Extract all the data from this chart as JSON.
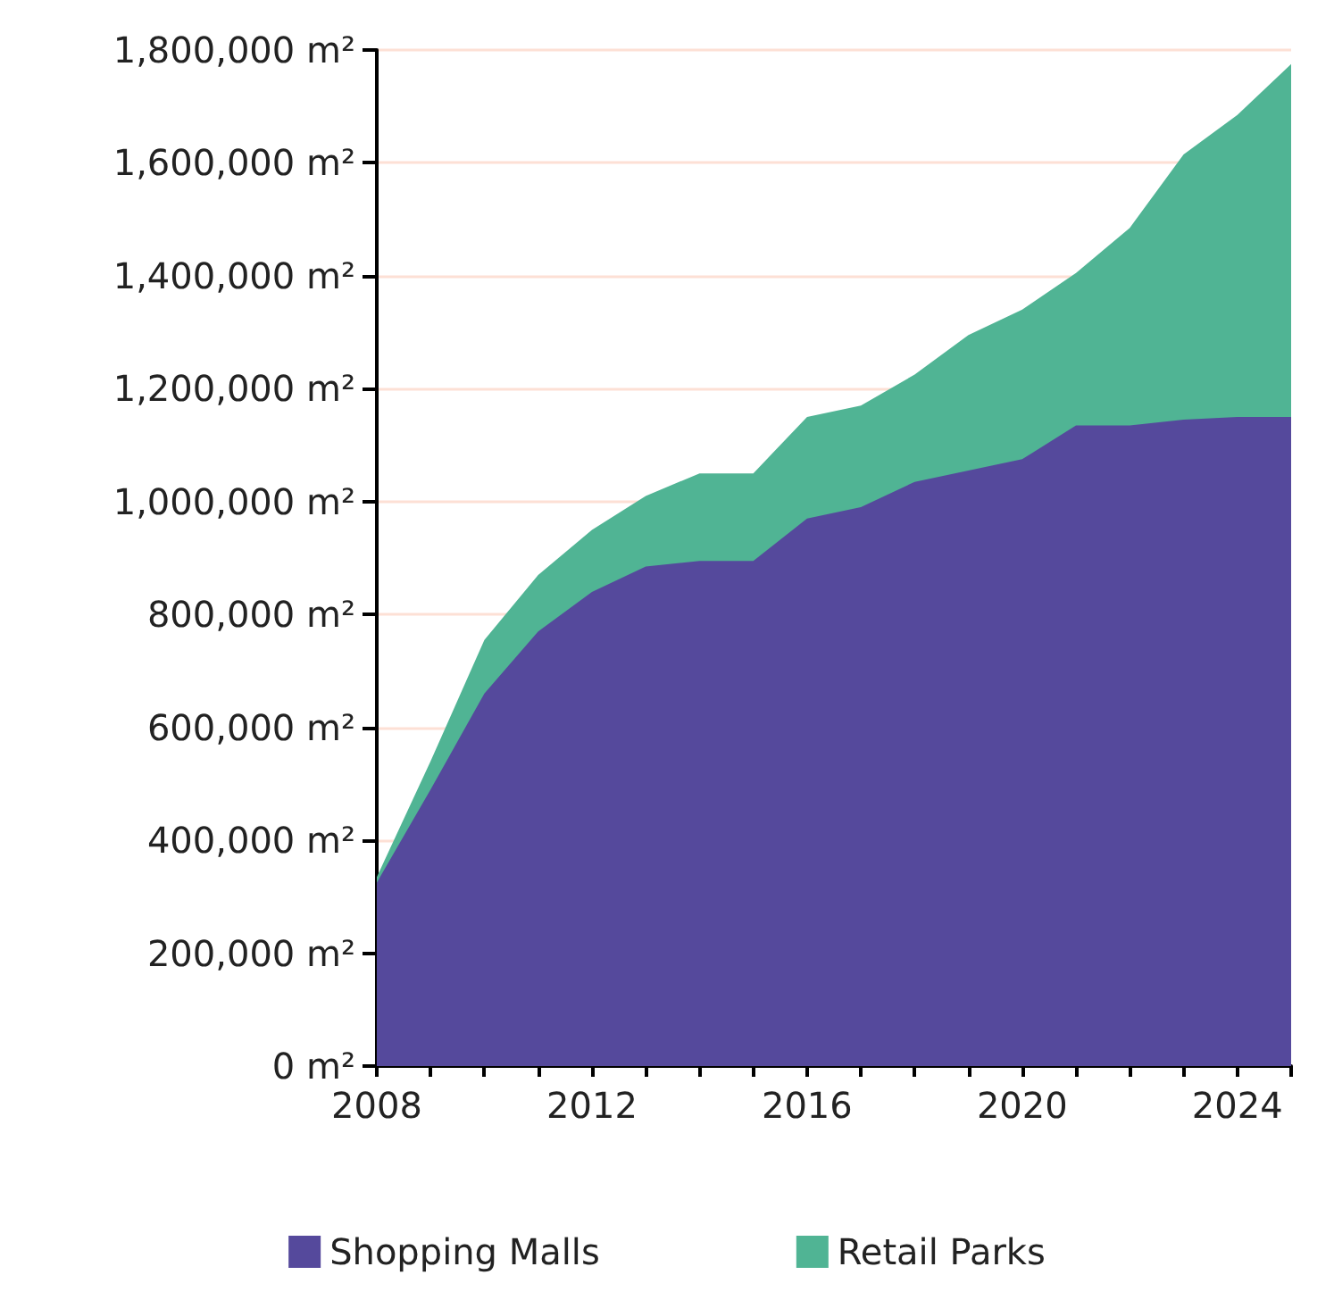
{
  "chart_data": {
    "type": "area",
    "stacked": true,
    "x": [
      2008,
      2009,
      2010,
      2011,
      2012,
      2013,
      2014,
      2015,
      2016,
      2017,
      2018,
      2019,
      2020,
      2021,
      2022,
      2023,
      2024,
      2025
    ],
    "series": [
      {
        "name": "Shopping Malls",
        "color": "#55499c",
        "values": [
          325000,
          490000,
          660000,
          770000,
          840000,
          885000,
          895000,
          895000,
          970000,
          990000,
          1035000,
          1055000,
          1075000,
          1135000,
          1135000,
          1145000,
          1150000,
          1150000
        ]
      },
      {
        "name": "Retail Parks",
        "color": "#50b494",
        "values": [
          10000,
          50000,
          95000,
          100000,
          110000,
          125000,
          155000,
          155000,
          180000,
          180000,
          190000,
          240000,
          265000,
          270000,
          350000,
          470000,
          535000,
          625000
        ]
      }
    ],
    "xlim": [
      2008,
      2025
    ],
    "xticks": [
      2008,
      {
        "value": 2009,
        "label": null
      },
      {
        "value": 2010,
        "label": null
      },
      {
        "value": 2011,
        "label": null
      },
      2012,
      {
        "value": 2013,
        "label": null
      },
      {
        "value": 2014,
        "label": null
      },
      {
        "value": 2015,
        "label": null
      },
      2016,
      {
        "value": 2017,
        "label": null
      },
      {
        "value": 2018,
        "label": null
      },
      {
        "value": 2019,
        "label": null
      },
      2020,
      {
        "value": 2021,
        "label": null
      },
      {
        "value": 2022,
        "label": null
      },
      {
        "value": 2023,
        "label": null
      },
      2024,
      {
        "value": 2025,
        "label": null
      }
    ],
    "ylim": [
      0,
      1800000
    ],
    "yticks": [
      {
        "value": 0,
        "label": "0 m²"
      },
      {
        "value": 200000,
        "label": "200,000 m²"
      },
      {
        "value": 400000,
        "label": "400,000 m²"
      },
      {
        "value": 600000,
        "label": "600,000 m²"
      },
      {
        "value": 800000,
        "label": "800,000 m²"
      },
      {
        "value": 1000000,
        "label": "1,000,000 m²"
      },
      {
        "value": 1200000,
        "label": "1,200,000 m²"
      },
      {
        "value": 1400000,
        "label": "1,400,000 m²"
      },
      {
        "value": 1600000,
        "label": "1,600,000 m²"
      },
      {
        "value": 1800000,
        "label": "1,800,000 m²"
      }
    ],
    "grid": "y",
    "legend": "bottom",
    "marker": "none"
  }
}
